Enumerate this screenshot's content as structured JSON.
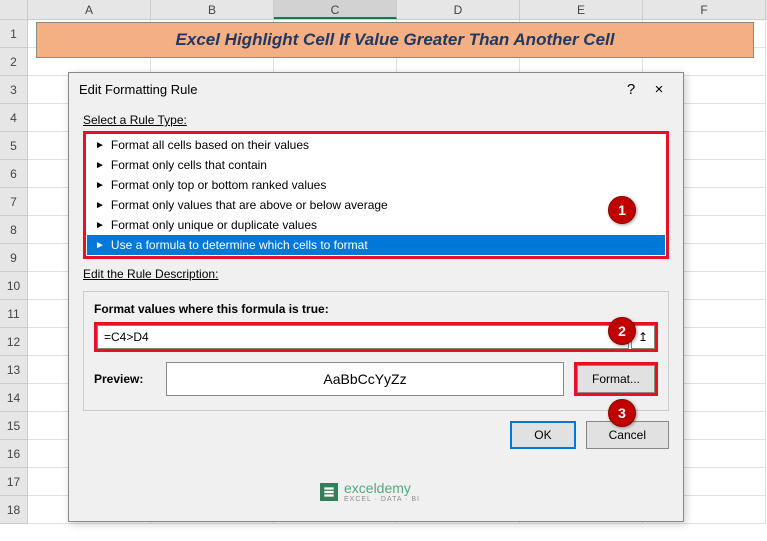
{
  "columns": [
    "A",
    "B",
    "C",
    "D",
    "E",
    "F"
  ],
  "selected_col_index": 2,
  "row_count": 18,
  "title": "Excel Highlight Cell If Value Greater Than Another Cell",
  "dialog": {
    "title": "Edit Formatting Rule",
    "help": "?",
    "close": "×",
    "select_label": "Select a Rule Type:",
    "rules": [
      "Format all cells based on their values",
      "Format only cells that contain",
      "Format only top or bottom ranked values",
      "Format only values that are above or below average",
      "Format only unique or duplicate values",
      "Use a formula to determine which cells to format"
    ],
    "selected_rule_index": 5,
    "desc_label": "Edit the Rule Description:",
    "formula_label": "Format values where this formula is true:",
    "formula_value": "=C4>D4",
    "range_icon": "↥",
    "preview_label": "Preview:",
    "preview_text": "AaBbCcYyZz",
    "format_btn": "Format...",
    "ok": "OK",
    "cancel": "Cancel"
  },
  "callouts": {
    "c1": "1",
    "c2": "2",
    "c3": "3"
  },
  "watermark": {
    "text": "exceldemy",
    "sub": "EXCEL · DATA · BI"
  },
  "colors": {
    "title_bg": "#f4b084",
    "title_fg": "#1f3864",
    "highlight_border": "#e81123",
    "selection_bg": "#0078d7",
    "callout_bg": "#c00000",
    "ok_border": "#0078d7"
  }
}
